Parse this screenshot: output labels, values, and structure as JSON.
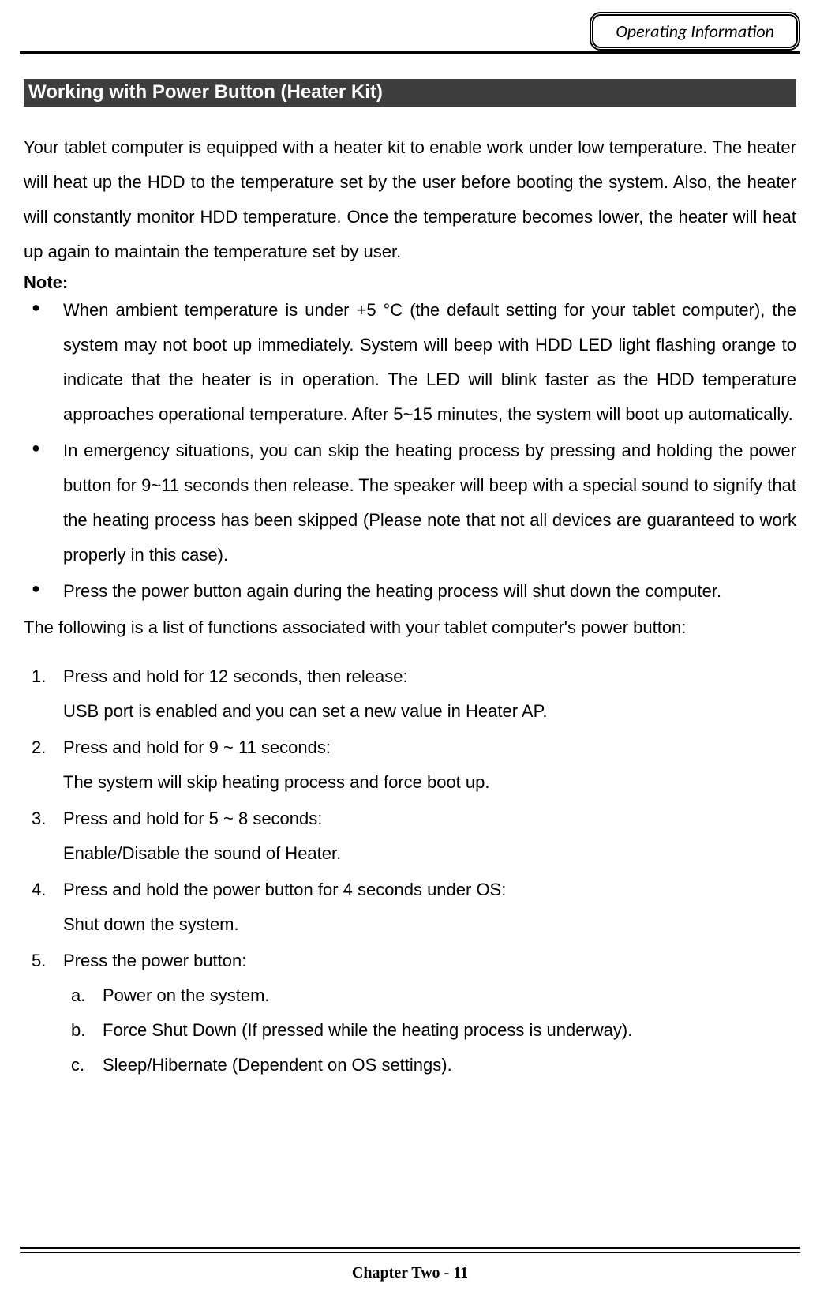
{
  "header": {
    "badge": "Operating Information"
  },
  "section": {
    "title": " Working with Power Button (Heater Kit)",
    "intro_paragraph": "Your tablet computer is equipped with a heater kit to enable work under low temperature. The heater will heat up the HDD to the temperature set by the user before booting the system. Also, the heater will constantly monitor HDD temperature. Once the temperature becomes lower, the heater will heat up again to maintain the temperature set by user.",
    "note_label": "Note:",
    "note_bullets": [
      "When ambient temperature is under +5 °C (the default setting for your tablet computer), the system may not boot up immediately. System will beep with HDD LED light flashing orange to indicate that the heater is in operation. The LED will blink faster as the HDD temperature approaches operational temperature. After 5~15 minutes, the system will boot up automatically.",
      "In emergency situations, you can skip the heating process by pressing and holding the power button for 9~11 seconds then release. The speaker will beep with a special sound to signify that the heating process has been skipped (Please note that not all devices are guaranteed to work properly in this case).",
      "Press the power button again during the heating process will shut down the computer."
    ],
    "functions_intro": "The following is a list of functions associated with your tablet computer's power button:",
    "functions": [
      {
        "action": "Press and hold for 12 seconds, then release:",
        "result": "USB port is enabled and you can set a new value in Heater AP."
      },
      {
        "action": "Press and hold for 9 ~ 11 seconds:",
        "result": "The system will skip heating process and force boot up."
      },
      {
        "action": "Press and hold for 5 ~ 8 seconds:",
        "result": "Enable/Disable the sound of Heater."
      },
      {
        "action": "Press and hold the power button for 4 seconds under OS:",
        "result": "Shut down the system."
      },
      {
        "action": "Press the power button:",
        "subitems": [
          "Power on the system.",
          "Force Shut Down (If pressed while the heating process is underway).",
          "Sleep/Hibernate (Dependent on OS settings)."
        ]
      }
    ]
  },
  "footer": {
    "text": "Chapter Two - 11"
  },
  "colors": {
    "section_title_bg": "#3e3e3e",
    "section_title_fg": "#ffffff",
    "text": "#000000",
    "page_bg": "#ffffff"
  },
  "typography": {
    "body_fontsize_pt": 16,
    "title_fontsize_pt": 18,
    "footer_fontsize_pt": 15,
    "badge_fontsize_pt": 16,
    "line_height": 2.0
  }
}
